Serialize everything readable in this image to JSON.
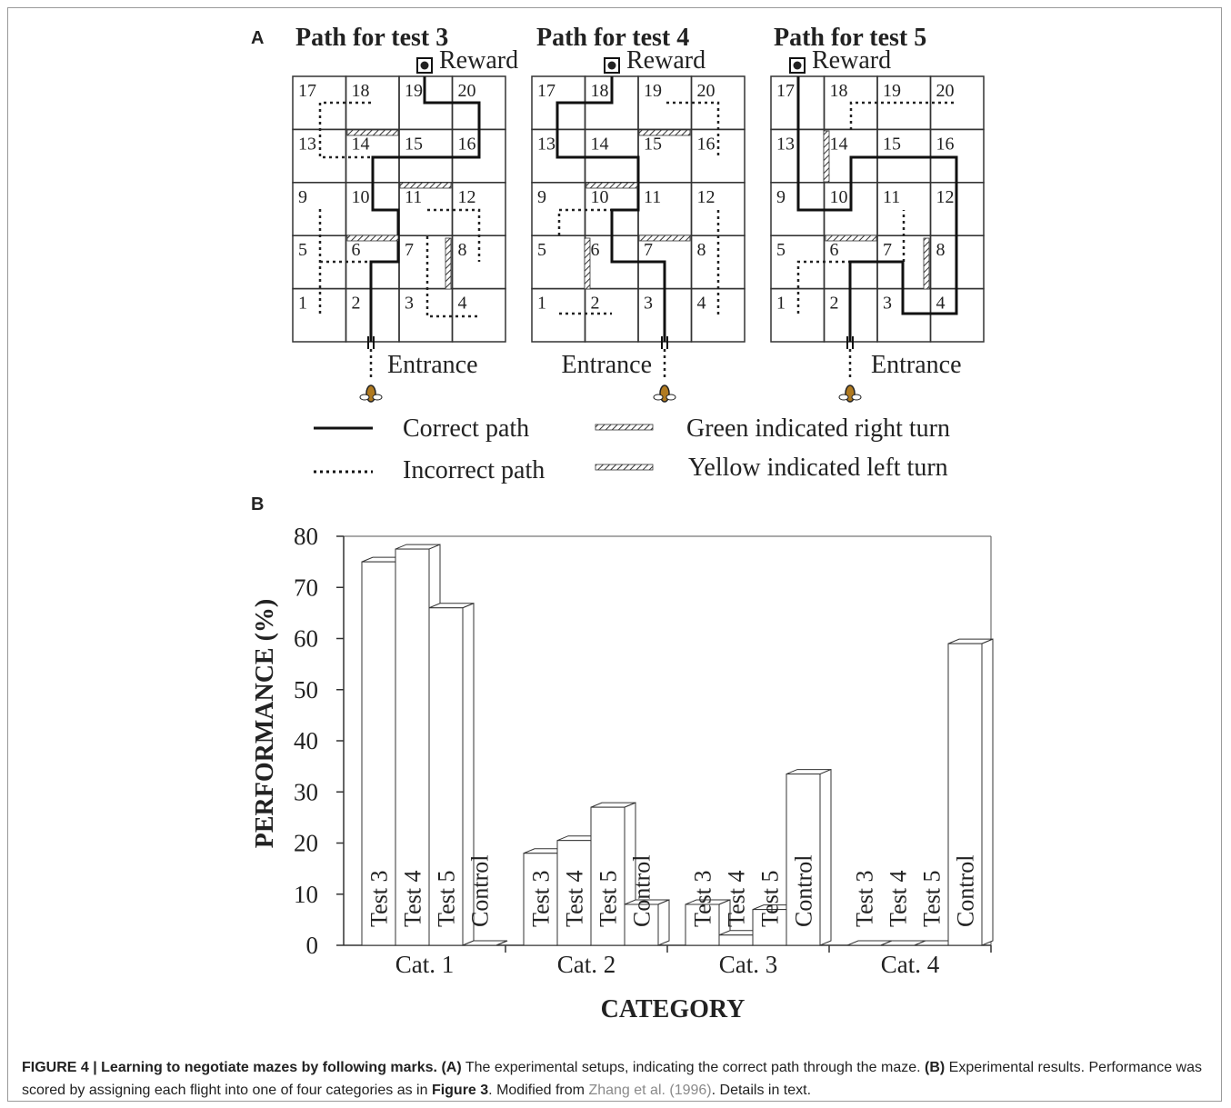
{
  "panel_a": {
    "label": "A",
    "mazes": [
      {
        "title": "Path for test 3",
        "reward_label": "Reward",
        "entrance_label": "Entrance"
      },
      {
        "title": "Path for test 4",
        "reward_label": "Reward",
        "entrance_label": "Entrance"
      },
      {
        "title": "Path for test 5",
        "reward_label": "Reward",
        "entrance_label": "Entrance"
      }
    ],
    "cells": [
      "1",
      "2",
      "3",
      "4",
      "5",
      "6",
      "7",
      "8",
      "9",
      "10",
      "11",
      "12",
      "13",
      "14",
      "15",
      "16",
      "17",
      "18",
      "19",
      "20"
    ],
    "legend": {
      "correct": "Correct path",
      "incorrect": "Incorrect path",
      "green": "Green indicated right turn",
      "yellow": "Yellow indicated left turn"
    }
  },
  "chart_data": {
    "type": "bar",
    "panel_label": "B",
    "x_label": "CATEGORY",
    "y_label": "PERFORMANCE (%)",
    "categories": [
      "Cat. 1",
      "Cat. 2",
      "Cat. 3",
      "Cat. 4"
    ],
    "series": [
      {
        "name": "Test 3",
        "color": "#ffffff",
        "values": [
          75,
          18,
          8,
          0
        ]
      },
      {
        "name": "Test 4",
        "color": "#ffffff",
        "values": [
          77.5,
          20.5,
          2,
          0
        ]
      },
      {
        "name": "Test 5",
        "color": "#ffffff",
        "values": [
          66,
          27,
          7,
          0
        ]
      },
      {
        "name": "Control",
        "color": "#ffffff",
        "values": [
          0,
          8,
          33.5,
          59
        ]
      }
    ],
    "ylim": [
      0,
      80
    ],
    "yticks": [
      0,
      10,
      20,
      30,
      40,
      50,
      60,
      70,
      80
    ]
  },
  "caption": [
    {
      "text": "FIGURE 4 | Learning to negotiate mazes by following marks.",
      "bold": true
    },
    {
      "text": " "
    },
    {
      "text": "(A)",
      "bold": true
    },
    {
      "text": " The experimental setups, indicating the correct path through the maze. "
    },
    {
      "text": "(B)",
      "bold": true
    },
    {
      "text": " Experimental results. Performance was scored by assigning each flight into one of four categories as in "
    },
    {
      "text": "Figure 3",
      "bold": true
    },
    {
      "text": ". Modified from "
    },
    {
      "text": "Zhang et al. (1996)",
      "link": true
    },
    {
      "text": ". Details in text."
    }
  ]
}
